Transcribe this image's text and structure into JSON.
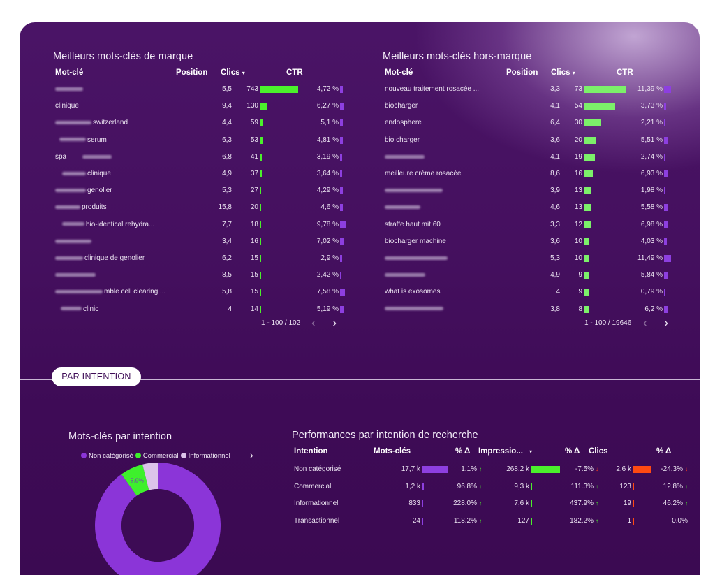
{
  "brand": {
    "title": "Meilleurs mots-clés de marque",
    "columns": {
      "keyword": "Mot-clé",
      "position": "Position",
      "clicks": "Clics",
      "sort_icon": "caret-down-icon",
      "ctr": "CTR"
    },
    "rows": [
      {
        "prefix": "",
        "keyword": "",
        "position": "5,5",
        "clicks": "743",
        "clicks_value": 743,
        "ctr": "4,72 %",
        "ctr_value": 4.72
      },
      {
        "prefix": "clinique",
        "keyword": "",
        "position": "9,4",
        "clicks": "130",
        "clicks_value": 130,
        "ctr": "6,27 %",
        "ctr_value": 6.27
      },
      {
        "prefix": "",
        "keyword": "switzerland",
        "position": "4,4",
        "clicks": "59",
        "clicks_value": 59,
        "ctr": "5,1 %",
        "ctr_value": 5.1
      },
      {
        "prefix": "",
        "keyword": "serum",
        "position": "6,3",
        "clicks": "53",
        "clicks_value": 53,
        "ctr": "4,81 %",
        "ctr_value": 4.81
      },
      {
        "prefix": "spa",
        "keyword": "",
        "position": "6,8",
        "clicks": "41",
        "clicks_value": 41,
        "ctr": "3,19 %",
        "ctr_value": 3.19
      },
      {
        "prefix": "",
        "keyword": "clinique",
        "position": "4,9",
        "clicks": "37",
        "clicks_value": 37,
        "ctr": "3,64 %",
        "ctr_value": 3.64
      },
      {
        "prefix": "",
        "keyword": "genolier",
        "position": "5,3",
        "clicks": "27",
        "clicks_value": 27,
        "ctr": "4,29 %",
        "ctr_value": 4.29
      },
      {
        "prefix": "",
        "keyword": "produits",
        "position": "15,8",
        "clicks": "20",
        "clicks_value": 20,
        "ctr": "4,6 %",
        "ctr_value": 4.6
      },
      {
        "prefix": "",
        "keyword": "bio-identical rehydra...",
        "position": "7,7",
        "clicks": "18",
        "clicks_value": 18,
        "ctr": "9,78 %",
        "ctr_value": 9.78
      },
      {
        "prefix": "",
        "keyword": "",
        "position": "3,4",
        "clicks": "16",
        "clicks_value": 16,
        "ctr": "7,02 %",
        "ctr_value": 7.02
      },
      {
        "prefix": "",
        "keyword": "clinique de genolier",
        "position": "6,2",
        "clicks": "15",
        "clicks_value": 15,
        "ctr": "2,9 %",
        "ctr_value": 2.9
      },
      {
        "prefix": "",
        "keyword": "",
        "position": "8,5",
        "clicks": "15",
        "clicks_value": 15,
        "ctr": "2,42 %",
        "ctr_value": 2.42
      },
      {
        "prefix": "",
        "keyword": "mble cell clearing ...",
        "position": "5,8",
        "clicks": "15",
        "clicks_value": 15,
        "ctr": "7,58 %",
        "ctr_value": 7.58
      },
      {
        "prefix": "",
        "keyword": "clinic",
        "position": "4",
        "clicks": "14",
        "clicks_value": 14,
        "ctr": "5,19 %",
        "ctr_value": 5.19
      }
    ],
    "pager": "1 - 100 / 102"
  },
  "nonbrand": {
    "title": "Meilleurs mots-clés hors-marque",
    "columns": {
      "keyword": "Mot-clé",
      "position": "Position",
      "clicks": "Clics",
      "sort_icon": "caret-down-icon",
      "ctr": "CTR"
    },
    "rows": [
      {
        "keyword": "nouveau traitement rosacée ...",
        "position": "3,3",
        "clicks": "73",
        "clicks_value": 73,
        "ctr": "11,39 %",
        "ctr_value": 11.39
      },
      {
        "keyword": "biocharger",
        "position": "4,1",
        "clicks": "54",
        "clicks_value": 54,
        "ctr": "3,73 %",
        "ctr_value": 3.73
      },
      {
        "keyword": "endosphere",
        "position": "6,4",
        "clicks": "30",
        "clicks_value": 30,
        "ctr": "2,21 %",
        "ctr_value": 2.21
      },
      {
        "keyword": "bio charger",
        "position": "3,6",
        "clicks": "20",
        "clicks_value": 20,
        "ctr": "5,51 %",
        "ctr_value": 5.51
      },
      {
        "keyword": "",
        "position": "4,1",
        "clicks": "19",
        "clicks_value": 19,
        "ctr": "2,74 %",
        "ctr_value": 2.74
      },
      {
        "keyword": "meilleure crème rosacée",
        "position": "8,6",
        "clicks": "16",
        "clicks_value": 16,
        "ctr": "6,93 %",
        "ctr_value": 6.93
      },
      {
        "keyword": "",
        "position": "3,9",
        "clicks": "13",
        "clicks_value": 13,
        "ctr": "1,98 %",
        "ctr_value": 1.98
      },
      {
        "keyword": "",
        "position": "4,6",
        "clicks": "13",
        "clicks_value": 13,
        "ctr": "5,58 %",
        "ctr_value": 5.58
      },
      {
        "keyword": "straffe haut mit 60",
        "position": "3,3",
        "clicks": "12",
        "clicks_value": 12,
        "ctr": "6,98 %",
        "ctr_value": 6.98
      },
      {
        "keyword": "biocharger machine",
        "position": "3,6",
        "clicks": "10",
        "clicks_value": 10,
        "ctr": "4,03 %",
        "ctr_value": 4.03
      },
      {
        "keyword": "",
        "position": "5,3",
        "clicks": "10",
        "clicks_value": 10,
        "ctr": "11,49 %",
        "ctr_value": 11.49
      },
      {
        "keyword": "",
        "position": "4,9",
        "clicks": "9",
        "clicks_value": 9,
        "ctr": "5,84 %",
        "ctr_value": 5.84
      },
      {
        "keyword": "what is exosomes",
        "position": "4",
        "clicks": "9",
        "clicks_value": 9,
        "ctr": "0,79 %",
        "ctr_value": 0.79
      },
      {
        "keyword": "",
        "position": "3,8",
        "clicks": "8",
        "clicks_value": 8,
        "ctr": "6,2 %",
        "ctr_value": 6.2
      }
    ],
    "pager": "1 - 100 / 19646"
  },
  "pager_icons": {
    "prev": "chevron-left-icon",
    "next": "chevron-right-icon"
  },
  "section_pill": "PAR INTENTION",
  "intent_chart": {
    "title": "Mots-clés par intention",
    "legend": [
      {
        "label": "Non catégorisé",
        "color": "#8b35d8"
      },
      {
        "label": "Commercial",
        "color": "#3ef02c"
      },
      {
        "label": "Informationnel",
        "color": "#dcc3ea"
      }
    ],
    "legend_next_icon": "caret-right-icon"
  },
  "chart_data": {
    "type": "pie",
    "donut": true,
    "categories": [
      "Non catégorisé",
      "Commercial",
      "Informationnel"
    ],
    "values": [
      89.7,
      5.9,
      3.9
    ],
    "data_labels": [
      "89.7%",
      "5.9%",
      ""
    ],
    "colors": [
      "#8b35d8",
      "#3ef02c",
      "#dcc3ea"
    ]
  },
  "perf": {
    "title": "Performances par intention de recherche",
    "columns": {
      "intent": "Intention",
      "keywords": "Mots-clés",
      "delta": "% Δ",
      "impressions": "Impressio...",
      "sort_icon": "caret-down-icon",
      "clicks": "Clics"
    },
    "rows": [
      {
        "intent": "Non catégorisé",
        "keywords": "17,7 k",
        "keywords_value": 17700,
        "kw_delta": "1.1%",
        "kw_dir": "up",
        "impressions": "268,2 k",
        "impressions_value": 268200,
        "imp_delta": "-7.5%",
        "imp_dir": "down",
        "clicks": "2,6 k",
        "clicks_value": 2600,
        "cl_delta": "-24.3%",
        "cl_dir": "down"
      },
      {
        "intent": "Commercial",
        "keywords": "1,2 k",
        "keywords_value": 1200,
        "kw_delta": "96.8%",
        "kw_dir": "up",
        "impressions": "9,3 k",
        "impressions_value": 9300,
        "imp_delta": "111.3%",
        "imp_dir": "up",
        "clicks": "123",
        "clicks_value": 123,
        "cl_delta": "12.8%",
        "cl_dir": "up"
      },
      {
        "intent": "Informationnel",
        "keywords": "833",
        "keywords_value": 833,
        "kw_delta": "228.0%",
        "kw_dir": "up",
        "impressions": "7,6 k",
        "impressions_value": 7600,
        "imp_delta": "437.9%",
        "imp_dir": "up",
        "clicks": "19",
        "clicks_value": 19,
        "cl_delta": "46.2%",
        "cl_dir": "up"
      },
      {
        "intent": "Transactionnel",
        "keywords": "24",
        "keywords_value": 24,
        "kw_delta": "118.2%",
        "kw_dir": "up",
        "impressions": "127",
        "impressions_value": 127,
        "imp_delta": "182.2%",
        "imp_dir": "up",
        "clicks": "1",
        "clicks_value": 1,
        "cl_delta": "0.0%",
        "cl_dir": "none"
      }
    ]
  }
}
